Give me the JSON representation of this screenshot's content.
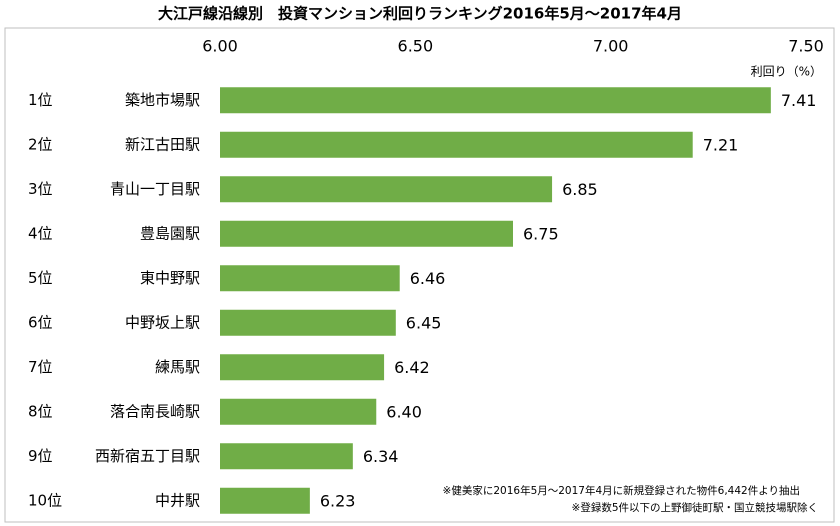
{
  "chart_data": {
    "type": "bar",
    "orientation": "horizontal",
    "title": "大江戸線沿線別　投資マンション利回りランキング2016年5月～2017年4月",
    "ranks": [
      "1位",
      "2位",
      "3位",
      "4位",
      "5位",
      "6位",
      "7位",
      "8位",
      "9位",
      "10位"
    ],
    "categories": [
      "築地市場駅",
      "新江古田駅",
      "青山一丁目駅",
      "豊島園駅",
      "東中野駅",
      "中野坂上駅",
      "練馬駅",
      "落合南長崎駅",
      "西新宿五丁目駅",
      "中井駅"
    ],
    "values": [
      7.41,
      7.21,
      6.85,
      6.75,
      6.46,
      6.45,
      6.42,
      6.4,
      6.34,
      6.23
    ],
    "value_labels": [
      "7.41",
      "7.21",
      "6.85",
      "6.75",
      "6.46",
      "6.45",
      "6.42",
      "6.40",
      "6.34",
      "6.23"
    ],
    "color": "#70ad47",
    "x_label": "利回り（%）",
    "xlim": [
      6.0,
      7.5
    ],
    "xticks": [
      {
        "value": 6.0,
        "label": "6.00"
      },
      {
        "value": 6.5,
        "label": "6.50"
      },
      {
        "value": 7.0,
        "label": "7.00"
      },
      {
        "value": 7.5,
        "label": "7.50"
      }
    ],
    "notes": [
      "※健美家に2016年5月～2017年4月に新規登録された物件6,442件より抽出",
      "※登録数5件以下の上野御徒町駅・国立競技場駅除く"
    ]
  }
}
